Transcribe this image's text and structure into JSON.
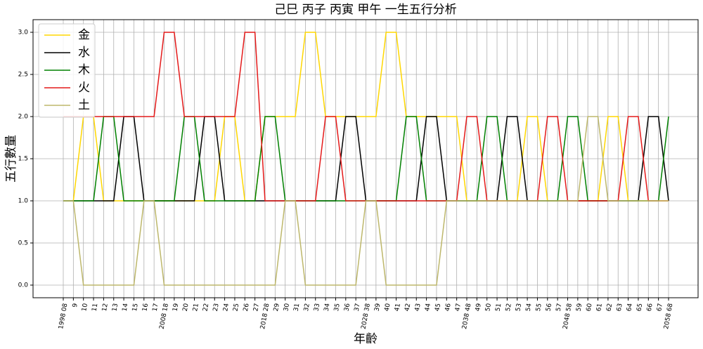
{
  "chart_data": {
    "type": "line",
    "title": "己巳 丙子 丙寅 甲午 一生五行分析",
    "xlabel": "年齡",
    "ylabel": "五行數量",
    "categories": [
      "1998 08",
      "9",
      "10",
      "11",
      "12",
      "13",
      "14",
      "15",
      "16",
      "17",
      "2008 18",
      "19",
      "20",
      "21",
      "22",
      "23",
      "24",
      "25",
      "26",
      "27",
      "2018 28",
      "29",
      "30",
      "31",
      "32",
      "33",
      "34",
      "35",
      "36",
      "37",
      "2028 38",
      "39",
      "40",
      "41",
      "42",
      "43",
      "44",
      "45",
      "46",
      "47",
      "2038 48",
      "49",
      "50",
      "51",
      "52",
      "53",
      "54",
      "55",
      "56",
      "57",
      "2048 58",
      "59",
      "60",
      "61",
      "62",
      "63",
      "64",
      "65",
      "66",
      "67",
      "2058 68"
    ],
    "series": [
      {
        "name": "金",
        "color": "#ffd700",
        "values": [
          1,
          1,
          2,
          2,
          1,
          1,
          1,
          1,
          1,
          1,
          1,
          1,
          1,
          1,
          1,
          1,
          2,
          2,
          1,
          1,
          2,
          2,
          2,
          2,
          3,
          3,
          2,
          2,
          2,
          2,
          2,
          2,
          3,
          3,
          2,
          2,
          2,
          2,
          2,
          2,
          1,
          1,
          1,
          1,
          1,
          1,
          2,
          2,
          1,
          1,
          1,
          1,
          1,
          1,
          2,
          2,
          1,
          1,
          1,
          1,
          1
        ]
      },
      {
        "name": "水",
        "color": "#000000",
        "values": [
          1,
          1,
          1,
          1,
          1,
          1,
          2,
          2,
          1,
          1,
          1,
          1,
          1,
          1,
          2,
          2,
          1,
          1,
          1,
          1,
          1,
          1,
          1,
          1,
          1,
          1,
          1,
          1,
          2,
          2,
          1,
          1,
          1,
          1,
          1,
          1,
          2,
          2,
          1,
          1,
          1,
          1,
          1,
          1,
          2,
          2,
          1,
          1,
          1,
          1,
          1,
          1,
          1,
          1,
          1,
          1,
          1,
          1,
          2,
          2,
          1
        ]
      },
      {
        "name": "木",
        "color": "#008000",
        "values": [
          1,
          1,
          1,
          1,
          2,
          2,
          1,
          1,
          1,
          1,
          1,
          1,
          2,
          2,
          1,
          1,
          1,
          1,
          1,
          1,
          2,
          2,
          1,
          1,
          1,
          1,
          1,
          1,
          1,
          1,
          1,
          1,
          1,
          1,
          2,
          2,
          1,
          1,
          1,
          1,
          1,
          1,
          2,
          2,
          1,
          1,
          1,
          1,
          1,
          1,
          2,
          2,
          1,
          1,
          1,
          1,
          1,
          1,
          1,
          1,
          2
        ]
      },
      {
        "name": "火",
        "color": "#e41a1a",
        "values": [
          2,
          2,
          2,
          2,
          2,
          2,
          2,
          2,
          2,
          2,
          3,
          3,
          2,
          2,
          2,
          2,
          2,
          2,
          3,
          3,
          1,
          1,
          1,
          1,
          1,
          1,
          2,
          2,
          1,
          1,
          1,
          1,
          1,
          1,
          1,
          1,
          1,
          1,
          1,
          1,
          2,
          2,
          1,
          1,
          1,
          1,
          1,
          1,
          2,
          2,
          1,
          1,
          1,
          1,
          1,
          1,
          2,
          2,
          1,
          1,
          1
        ]
      },
      {
        "name": "土",
        "color": "#bdb76b",
        "values": [
          1,
          1,
          0,
          0,
          0,
          0,
          0,
          0,
          1,
          1,
          0,
          0,
          0,
          0,
          0,
          0,
          0,
          0,
          0,
          0,
          0,
          0,
          1,
          1,
          0,
          0,
          0,
          0,
          0,
          0,
          1,
          1,
          0,
          0,
          0,
          0,
          0,
          0,
          1,
          1,
          1,
          1,
          1,
          1,
          1,
          1,
          1,
          1,
          1,
          1,
          1,
          1,
          2,
          2,
          1,
          1,
          1,
          1,
          1,
          1,
          1
        ]
      }
    ],
    "ylim": [
      -0.15,
      3.15
    ],
    "yticks": [
      {
        "value": 0,
        "label": "0.0"
      },
      {
        "value": 0.5,
        "label": "0.5"
      },
      {
        "value": 1,
        "label": "1.0"
      },
      {
        "value": 1.5,
        "label": "1.5"
      },
      {
        "value": 2,
        "label": "2.0"
      },
      {
        "value": 2.5,
        "label": "2.5"
      },
      {
        "value": 3,
        "label": "3.0"
      }
    ],
    "grid": true,
    "legend": "upper-left"
  }
}
